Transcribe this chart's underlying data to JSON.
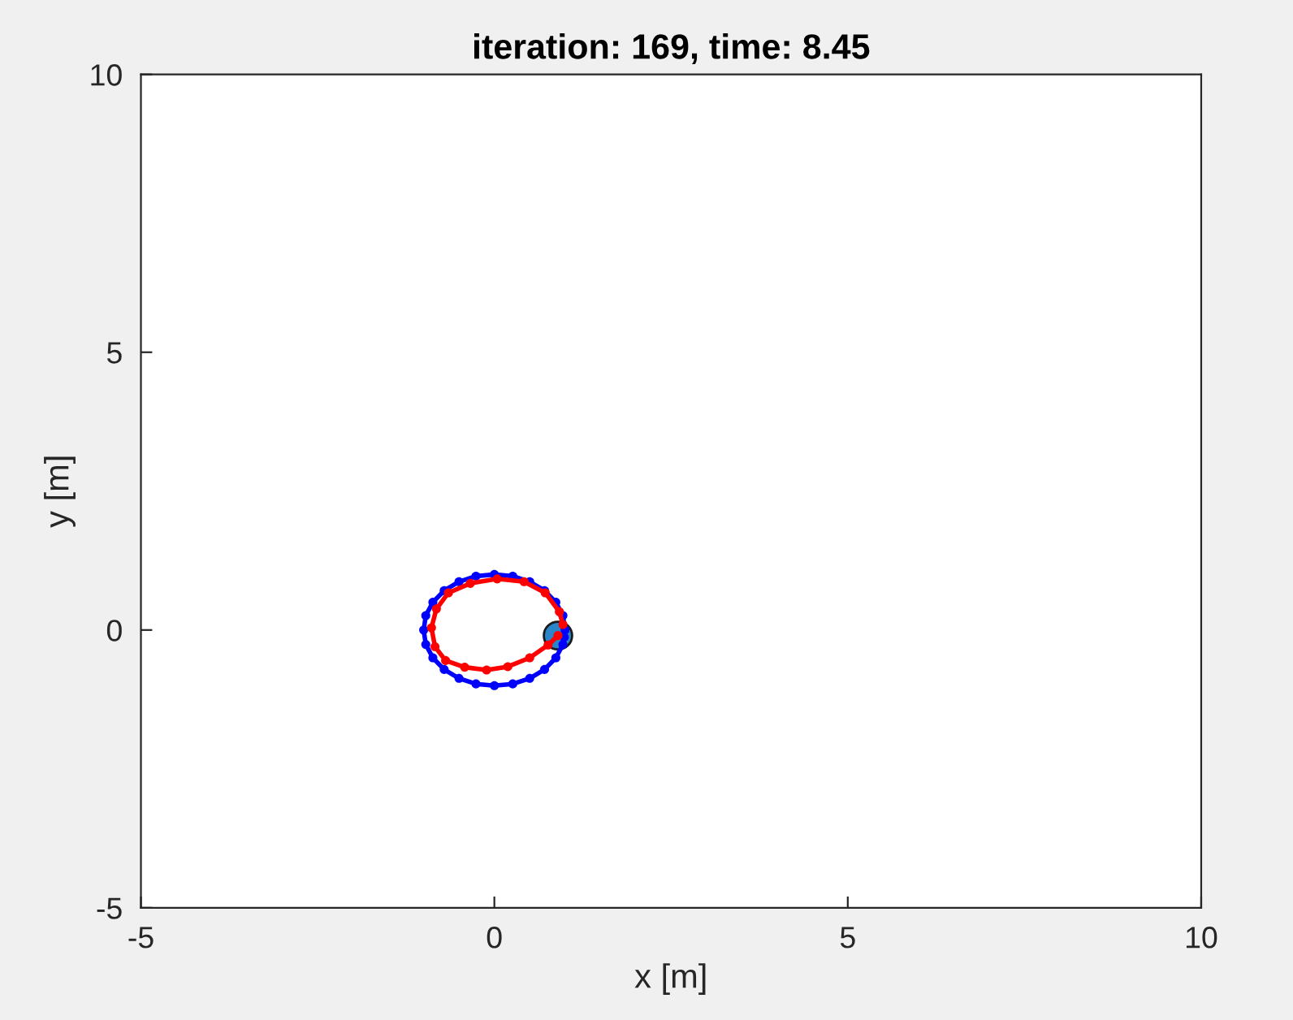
{
  "chart_data": {
    "type": "line",
    "title": "iteration: 169, time: 8.45",
    "xlabel": "x [m]",
    "ylabel": "y [m]",
    "xlim": [
      -5,
      10
    ],
    "ylim": [
      -5,
      10
    ],
    "xticks": [
      -5,
      0,
      5,
      10
    ],
    "yticks": [
      -5,
      0,
      5,
      10
    ],
    "marker": "circle",
    "line_style": "solid",
    "series": [
      {
        "color": "#0000ff",
        "x": [
          1.0,
          0.97,
          0.87,
          0.71,
          0.5,
          0.26,
          0.0,
          -0.26,
          -0.5,
          -0.71,
          -0.87,
          -0.97,
          -1.0,
          -0.97,
          -0.87,
          -0.71,
          -0.5,
          -0.26,
          0.0,
          0.26,
          0.5,
          0.71,
          0.87,
          0.97,
          0.99
        ],
        "values": [
          0.0,
          0.26,
          0.5,
          0.71,
          0.87,
          0.97,
          1.0,
          0.97,
          0.87,
          0.71,
          0.5,
          0.26,
          0.0,
          -0.26,
          -0.5,
          -0.71,
          -0.87,
          -0.97,
          -1.0,
          -0.97,
          -0.87,
          -0.71,
          -0.5,
          -0.26,
          -0.13
        ]
      },
      {
        "color": "#ff0000",
        "x": [
          0.97,
          0.92,
          0.72,
          0.42,
          0.04,
          -0.34,
          -0.65,
          -0.82,
          -0.89,
          -0.84,
          -0.69,
          -0.42,
          -0.11,
          0.19,
          0.5,
          0.76,
          0.9
        ],
        "values": [
          0.1,
          0.33,
          0.67,
          0.87,
          0.92,
          0.84,
          0.67,
          0.38,
          0.04,
          -0.3,
          -0.55,
          -0.67,
          -0.72,
          -0.66,
          -0.5,
          -0.27,
          -0.1
        ]
      }
    ]
  }
}
